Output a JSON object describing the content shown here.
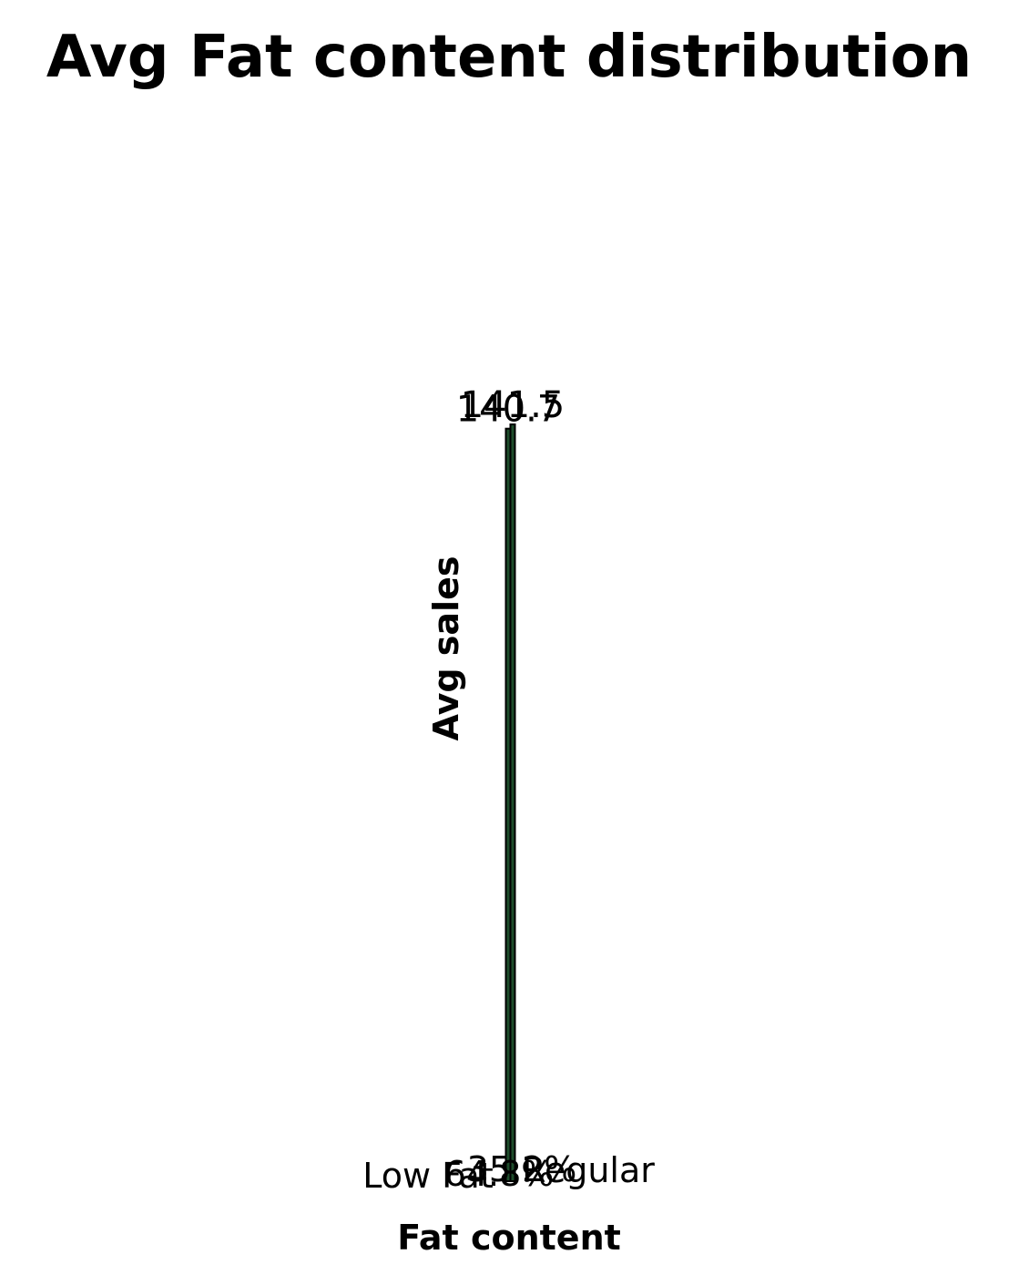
{
  "chart_data": {
    "type": "bar",
    "title": "Avg Fat content distribution",
    "xlabel": "Fat content",
    "ylabel": "Avg sales",
    "categories": [
      "Low Fat",
      "Regular"
    ],
    "values": [
      140.7,
      141.5
    ],
    "value_labels": [
      "140.7",
      "141.5"
    ],
    "percent_labels": [
      "64.8%",
      "35.2%"
    ],
    "ylim": [
      0,
      141.5
    ],
    "grid": false,
    "legend": "none",
    "bar_color": "#1e4d2b",
    "edge_color": "#000000"
  }
}
